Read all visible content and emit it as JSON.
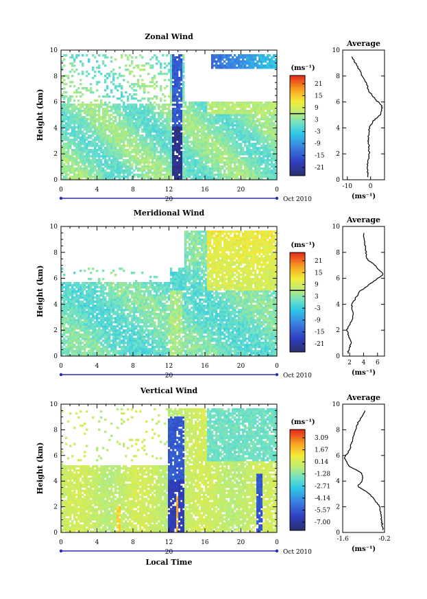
{
  "figure": {
    "x_axis_label": "Local Time",
    "date_label": "Oct 2010",
    "day_label": "20"
  },
  "chart_data": [
    {
      "type": "heatmap",
      "title": "Zonal Wind",
      "ylabel": "Height (km)",
      "x_ticks": [
        "0",
        "4",
        "8",
        "12",
        "16",
        "20",
        "0"
      ],
      "y_ticks": [
        "0",
        "2",
        "4",
        "6",
        "8",
        "10"
      ],
      "xlim": [
        0,
        24
      ],
      "ylim": [
        0,
        10
      ],
      "colorbar": {
        "unit": "(ms⁻¹)",
        "ticks": [
          "21",
          "15",
          "9",
          "3",
          "-3",
          "-9",
          "-15",
          "-21"
        ],
        "zero_line_at_tick": 3
      },
      "average": {
        "title": "Average",
        "xlabel": "(ms⁻¹)",
        "x_ticks": [
          "-10",
          "0"
        ],
        "xlim": [
          -12,
          6
        ],
        "heights": [
          0.2,
          1,
          2,
          3,
          4,
          4.5,
          5,
          5.5,
          5.8,
          6.2,
          6.8,
          7.5,
          8.5,
          9.5
        ],
        "values": [
          -1,
          -1.5,
          -0.5,
          -1,
          -0.5,
          1,
          4,
          5,
          4.5,
          2,
          -0.5,
          -2,
          -5,
          -8
        ]
      }
    },
    {
      "type": "heatmap",
      "title": "Meridional Wind",
      "ylabel": "Height (km)",
      "x_ticks": [
        "0",
        "4",
        "8",
        "12",
        "16",
        "20",
        "0"
      ],
      "y_ticks": [
        "0",
        "2",
        "4",
        "6",
        "8",
        "10"
      ],
      "xlim": [
        0,
        24
      ],
      "ylim": [
        0,
        10
      ],
      "colorbar": {
        "unit": "(ms⁻¹)",
        "ticks": [
          "21",
          "15",
          "9",
          "3",
          "-3",
          "-9",
          "-15",
          "-21"
        ],
        "zero_line_at_tick": 3
      },
      "average": {
        "title": "Average",
        "xlabel": "(ms⁻¹)",
        "x_ticks": [
          "2",
          "4",
          "6"
        ],
        "xlim": [
          1,
          7
        ],
        "heights": [
          0.2,
          1,
          2,
          3,
          4,
          5,
          5.8,
          6.3,
          6.8,
          7.5,
          8.5,
          9.5
        ],
        "values": [
          1.7,
          2.2,
          1.6,
          2.5,
          2.3,
          3.5,
          5.5,
          6.8,
          6.0,
          4.5,
          4.2,
          4.0
        ]
      }
    },
    {
      "type": "heatmap",
      "title": "Vertical Wind",
      "ylabel": "Height (km)",
      "x_ticks": [
        "0",
        "4",
        "8",
        "12",
        "16",
        "20",
        "0"
      ],
      "y_ticks": [
        "0",
        "2",
        "4",
        "6",
        "8",
        "10"
      ],
      "xlim": [
        0,
        24
      ],
      "ylim": [
        0,
        10
      ],
      "colorbar": {
        "unit": "(ms⁻¹)",
        "ticks": [
          "3.09",
          "1.67",
          "0.14",
          "-1.28",
          "-2.71",
          "-4.14",
          "-5.57",
          "-7.00"
        ]
      },
      "average": {
        "title": "Average",
        "xlabel": "(ms⁻¹)",
        "x_ticks": [
          "-1.6",
          "-0.2"
        ],
        "xlim": [
          -1.6,
          -0.2
        ],
        "heights": [
          0.2,
          1,
          2,
          3,
          3.6,
          4,
          4.6,
          5.2,
          5.8,
          6.5,
          7.5,
          8.5,
          9.5
        ],
        "values": [
          -0.25,
          -0.3,
          -0.35,
          -0.7,
          -1.1,
          -0.95,
          -0.95,
          -1.4,
          -1.55,
          -1.35,
          -1.25,
          -1.1,
          -0.85
        ]
      }
    }
  ]
}
